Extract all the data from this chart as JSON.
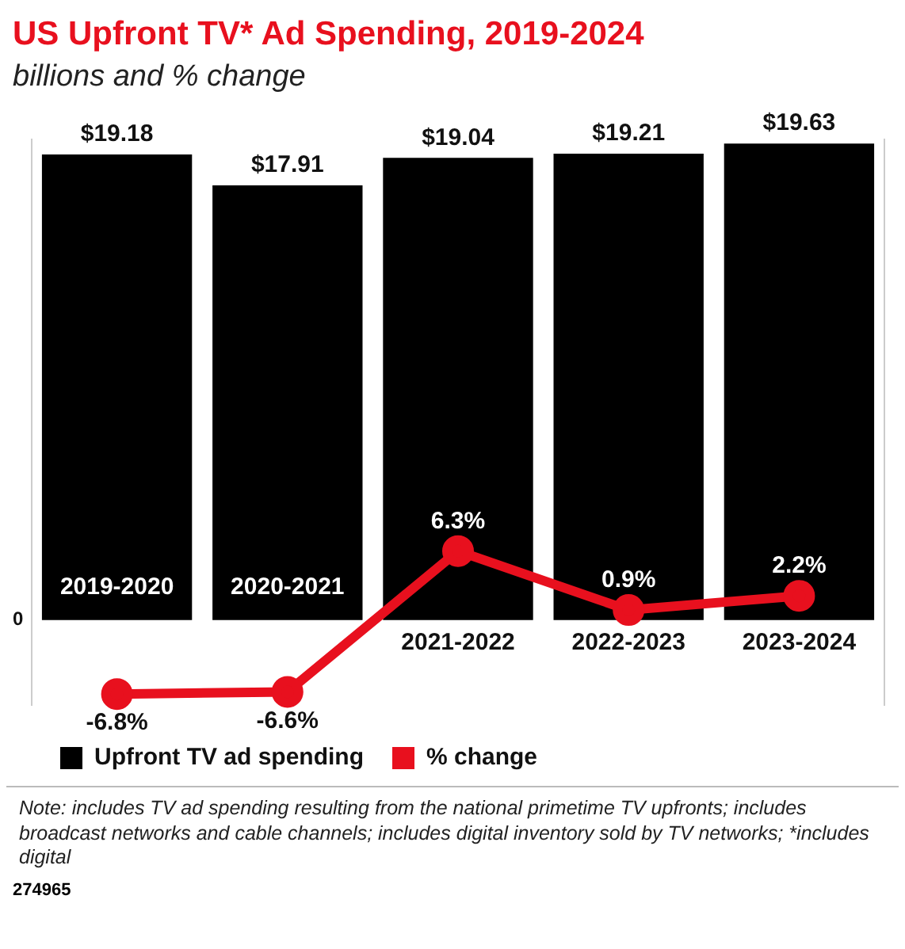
{
  "chart_data": {
    "type": "bar",
    "title": "US Upfront TV* Ad Spending, 2019-2024",
    "subtitle": "billions and % change",
    "categories": [
      "2019-2020",
      "2020-2021",
      "2021-2022",
      "2022-2023",
      "2023-2024"
    ],
    "series": [
      {
        "name": "Upfront TV ad spending",
        "color": "#000000",
        "values": [
          19.18,
          17.91,
          19.04,
          19.21,
          19.63
        ],
        "value_labels": [
          "$19.18",
          "$17.91",
          "$19.04",
          "$19.21",
          "$19.63"
        ]
      },
      {
        "name": "% change",
        "type": "line",
        "axis": "y2",
        "color": "#e8101e",
        "values": [
          -6.8,
          -6.6,
          6.3,
          0.9,
          2.2
        ],
        "value_labels": [
          "-6.8%",
          "-6.6%",
          "6.3%",
          "0.9%",
          "2.2%"
        ]
      }
    ],
    "ylim": [
      -3.5,
      19.8
    ],
    "y2lim": [
      -7.8,
      44
    ],
    "legend": "bottom left",
    "marker": "circle",
    "annotations": [
      "0",
      "Note: includes TV ad spending resulting from the national primetime TV upfronts; includes broadcast networks and cable channels; includes digital inventory sold by TV networks; *includes digital",
      "274965"
    ]
  }
}
